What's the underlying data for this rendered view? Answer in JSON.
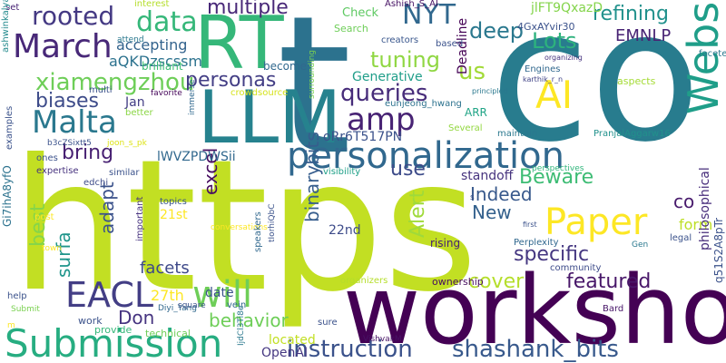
{
  "words": [
    {
      "text": "https",
      "color": "#c2df23"
    },
    {
      "text": "t",
      "color": "#2c728e"
    },
    {
      "text": "co",
      "color": "#287c8e"
    },
    {
      "text": "workshop",
      "color": "#440154"
    },
    {
      "text": "RT",
      "color": "#35b779"
    },
    {
      "text": "LLM",
      "color": "#26828e"
    },
    {
      "text": "personalization",
      "color": "#31688e"
    },
    {
      "text": "Submission",
      "color": "#27ad81"
    },
    {
      "text": "Website",
      "color": "#1f9e89"
    },
    {
      "text": "Paper",
      "color": "#fde725"
    },
    {
      "text": "AI",
      "color": "#fde725"
    },
    {
      "text": "March",
      "color": "#482878"
    },
    {
      "text": "Malta",
      "color": "#2a788e"
    },
    {
      "text": "will",
      "color": "#6ece58"
    },
    {
      "text": "EACL",
      "color": "#433e85"
    },
    {
      "text": "amp",
      "color": "#482374"
    },
    {
      "text": "instruction",
      "color": "#3b528b"
    },
    {
      "text": "shashank_bits",
      "color": "#38598c"
    },
    {
      "text": "data",
      "color": "#35b779"
    },
    {
      "text": "rooted",
      "color": "#443983"
    },
    {
      "text": "NYT",
      "color": "#31688e"
    },
    {
      "text": "queries",
      "color": "#472c7a"
    },
    {
      "text": "xiamengzhou",
      "color": "#6ece58"
    },
    {
      "text": "tuning",
      "color": "#90d743"
    },
    {
      "text": "deep",
      "color": "#2a788e"
    },
    {
      "text": "biases",
      "color": "#3e4c8a"
    },
    {
      "text": "personas",
      "color": "#433e85"
    },
    {
      "text": "multiple",
      "color": "#482878"
    },
    {
      "text": "refining",
      "color": "#21918c"
    },
    {
      "text": "Lots",
      "color": "#2db27d"
    },
    {
      "text": "us",
      "color": "#a2da37"
    },
    {
      "text": "EMNLP",
      "color": "#482374"
    },
    {
      "text": "aQKDzscssm",
      "color": "#2c728e"
    },
    {
      "text": "accepting",
      "color": "#33638d"
    },
    {
      "text": "bring",
      "color": "#482173"
    },
    {
      "text": "use",
      "color": "#3e4c8a"
    },
    {
      "text": "Beware",
      "color": "#3dbc74"
    },
    {
      "text": "Indeed",
      "color": "#38598c"
    },
    {
      "text": "specific",
      "color": "#453781"
    },
    {
      "text": "New",
      "color": "#34618d"
    },
    {
      "text": "cover",
      "color": "#b5de2b"
    },
    {
      "text": "featured",
      "color": "#481769"
    },
    {
      "text": "co",
      "color": "#481a6c"
    },
    {
      "text": "form",
      "color": "#bddf26"
    },
    {
      "text": "facets",
      "color": "#3e4989"
    },
    {
      "text": "Don",
      "color": "#463480"
    },
    {
      "text": "behavior",
      "color": "#6ece58"
    },
    {
      "text": "27th",
      "color": "#fde725"
    },
    {
      "text": "best",
      "color": "#86d549"
    },
    {
      "text": "adapt",
      "color": "#3b528b"
    },
    {
      "text": "surfa",
      "color": "#1f958b"
    },
    {
      "text": "excel",
      "color": "#470d60"
    },
    {
      "text": "binarybits",
      "color": "#365d8d"
    },
    {
      "text": "Alert",
      "color": "#9fda3a"
    },
    {
      "text": "lWVZPDWSii",
      "color": "#31688e"
    },
    {
      "text": "oRr6T517PN",
      "color": "#3b528b"
    },
    {
      "text": "Generative",
      "color": "#1f9e89"
    },
    {
      "text": "Deadline",
      "color": "#440154"
    },
    {
      "text": "Jan",
      "color": "#433e85"
    },
    {
      "text": "22nd",
      "color": "#3e4c8a"
    },
    {
      "text": "21st",
      "color": "#fde725"
    },
    {
      "text": "standoff",
      "color": "#46337e"
    },
    {
      "text": "date",
      "color": "#3b528b"
    },
    {
      "text": "OpenAI",
      "color": "#453781"
    },
    {
      "text": "located",
      "color": "#c2df23"
    },
    {
      "text": "philosophical",
      "color": "#472d7b"
    },
    {
      "text": "q51S2A8pTr",
      "color": "#3b528b"
    },
    {
      "text": "Gi7ihA8yfO",
      "color": "#2c728e"
    },
    {
      "text": "jlFT9QxazD",
      "color": "#84d44b"
    },
    {
      "text": "4GxAYvir30",
      "color": "#3b528b"
    },
    {
      "text": "Check",
      "color": "#5ec962"
    },
    {
      "text": "Ashish_S_AI",
      "color": "#471365"
    },
    {
      "text": "interest",
      "color": "#b5de2b"
    },
    {
      "text": "set",
      "color": "#482374"
    },
    {
      "text": "ashwinkalyan7",
      "color": "#238a8d"
    },
    {
      "text": "brilliant",
      "color": "#3dbc74"
    },
    {
      "text": "attend",
      "color": "#2a788e"
    },
    {
      "text": "favorite",
      "color": "#450559"
    },
    {
      "text": "multi",
      "color": "#3b528b"
    },
    {
      "text": "better",
      "color": "#8bd646"
    },
    {
      "text": "become",
      "color": "#31688e"
    },
    {
      "text": "crowdsource",
      "color": "#d5e21a"
    },
    {
      "text": "immerse",
      "color": "#31688e"
    },
    {
      "text": "surrounding",
      "color": "#7ad151"
    },
    {
      "text": "eunjeong_hwang",
      "color": "#2c728e"
    },
    {
      "text": "creators",
      "color": "#39568c"
    },
    {
      "text": "based",
      "color": "#3b528b"
    },
    {
      "text": "ARR",
      "color": "#20a486"
    },
    {
      "text": "Search",
      "color": "#6ece58"
    },
    {
      "text": "organizing",
      "color": "#46327e"
    },
    {
      "text": "karthik_r_n",
      "color": "#414487"
    },
    {
      "text": "principled",
      "color": "#2a788e"
    },
    {
      "text": "Engines",
      "color": "#31688e"
    },
    {
      "text": "faceted",
      "color": "#2a788e"
    },
    {
      "text": "aspects",
      "color": "#a5db36"
    },
    {
      "text": "maintain",
      "color": "#2a788e"
    },
    {
      "text": "Several",
      "color": "#93d741"
    },
    {
      "text": "PranjalAggarw16",
      "color": "#21918c"
    },
    {
      "text": "perspectives",
      "color": "#30b57b"
    },
    {
      "text": "visibility",
      "color": "#1fa088"
    },
    {
      "text": "b3cZSixtt5",
      "color": "#3b528b"
    },
    {
      "text": "joon_s_pk",
      "color": "#dde318"
    },
    {
      "text": "examples",
      "color": "#3b528b"
    },
    {
      "text": "ones",
      "color": "#3b528b"
    },
    {
      "text": "similar",
      "color": "#3b528b"
    },
    {
      "text": "expertise",
      "color": "#46327e"
    },
    {
      "text": "edchi",
      "color": "#3e4c8a"
    },
    {
      "text": "post",
      "color": "#fde725"
    },
    {
      "text": "town",
      "color": "#fde725"
    },
    {
      "text": "help",
      "color": "#3b528b"
    },
    {
      "text": "Submit",
      "color": "#7ad151"
    },
    {
      "text": "m",
      "color": "#fde725"
    },
    {
      "text": "provide",
      "color": "#35b779"
    },
    {
      "text": "work",
      "color": "#3b528b"
    },
    {
      "text": "technical",
      "color": "#6ece58"
    },
    {
      "text": "Diyi_Yang",
      "color": "#31688e"
    },
    {
      "text": "vein",
      "color": "#31688e"
    },
    {
      "text": "square",
      "color": "#3b528b"
    },
    {
      "text": "conversations",
      "color": "#fde725"
    },
    {
      "text": "important",
      "color": "#46327e"
    },
    {
      "text": "topics",
      "color": "#39568c"
    },
    {
      "text": "speakers",
      "color": "#31688e"
    },
    {
      "text": "tIorhiQbC",
      "color": "#3b528b"
    },
    {
      "text": "IjdCl3Ti8e",
      "color": "#2a788e"
    },
    {
      "text": "VishvakM",
      "color": "#471365"
    },
    {
      "text": "sure",
      "color": "#3b528b"
    },
    {
      "text": "organizers",
      "color": "#b5de2b"
    },
    {
      "text": "ownership",
      "color": "#470d60"
    },
    {
      "text": "rising",
      "color": "#482173"
    },
    {
      "text": "community",
      "color": "#3e4c8a"
    },
    {
      "text": "Perplexity",
      "color": "#31688e"
    },
    {
      "text": "Bard",
      "color": "#481769"
    },
    {
      "text": "first",
      "color": "#3b528b"
    },
    {
      "text": "Gen",
      "color": "#2a788e"
    },
    {
      "text": "legal",
      "color": "#3b528b"
    },
    {
      "text": "s",
      "color": "#3b528b"
    }
  ]
}
